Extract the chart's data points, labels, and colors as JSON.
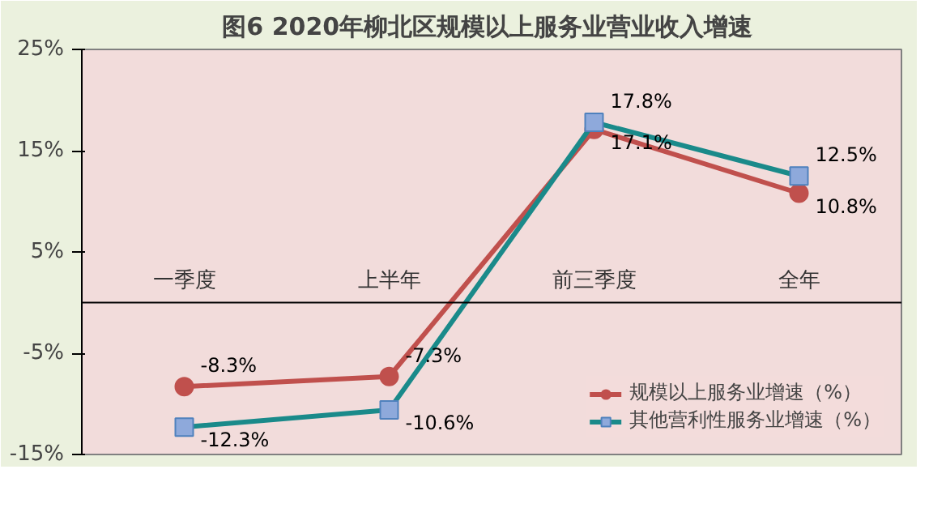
{
  "chart_data": {
    "type": "line",
    "title": "图6  2020年柳北区规模以上服务业营业收入增速",
    "categories": [
      "一季度",
      "上半年",
      "前三季度",
      "全年"
    ],
    "series": [
      {
        "name": "规模以上服务业增速（%）",
        "color": "#c0504d",
        "marker": "circle",
        "values": [
          -8.3,
          -7.3,
          17.1,
          10.8
        ],
        "value_labels": [
          "-8.3%",
          "-7.3%",
          "17.1%",
          "10.8%"
        ]
      },
      {
        "name": "其他营利性服务业增速（%）",
        "color": "#1a8a8a",
        "marker": "square",
        "values": [
          -12.3,
          -10.6,
          17.8,
          12.5
        ],
        "value_labels": [
          "-12.3%",
          "-10.6%",
          "17.8%",
          "12.5%"
        ]
      }
    ],
    "ylim": [
      -15,
      25
    ],
    "yticks": [
      {
        "value": -15,
        "label": "-15%"
      },
      {
        "value": -5,
        "label": "-5%"
      },
      {
        "value": 5,
        "label": "5%"
      },
      {
        "value": 15,
        "label": "15%"
      },
      {
        "value": 25,
        "label": "25%"
      }
    ],
    "grid": false,
    "legend": "bottom right",
    "line_style": "solid"
  }
}
